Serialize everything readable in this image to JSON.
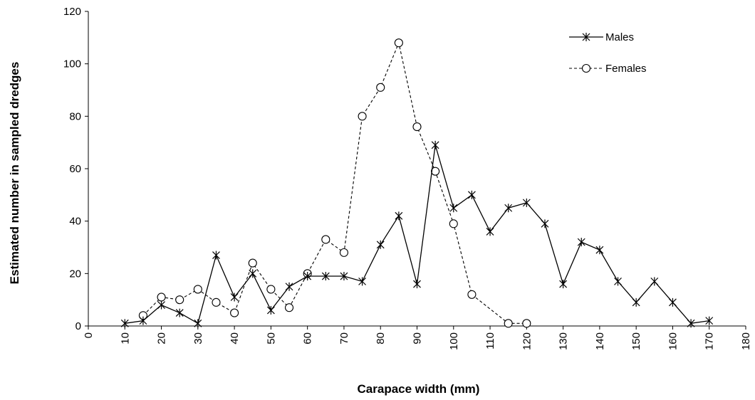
{
  "chart_data": {
    "type": "line",
    "title": "",
    "xlabel": "Carapace width (mm)",
    "ylabel": "Estimated number in sampled dredges",
    "xlim": [
      0,
      180
    ],
    "ylim": [
      0,
      120
    ],
    "x_ticks": [
      "0",
      "10",
      "20",
      "30",
      "40",
      "50",
      "60",
      "70",
      "80",
      "90",
      "100",
      "110",
      "120",
      "130",
      "140",
      "150",
      "160",
      "170",
      "180"
    ],
    "y_ticks": [
      "0",
      "20",
      "40",
      "60",
      "80",
      "100",
      "120"
    ],
    "grid": false,
    "legend_position": "top-right",
    "series": [
      {
        "name": "Males",
        "line_style": "solid",
        "marker": "asterisk",
        "color": "#000000",
        "x": [
          10,
          15,
          20,
          25,
          30,
          35,
          40,
          45,
          50,
          55,
          60,
          65,
          70,
          75,
          80,
          85,
          90,
          95,
          100,
          105,
          110,
          115,
          120,
          125,
          130,
          135,
          140,
          145,
          150,
          155,
          160,
          165,
          170
        ],
        "values": [
          1,
          2,
          8,
          5,
          1,
          27,
          11,
          20,
          6,
          15,
          19,
          19,
          19,
          17,
          31,
          42,
          16,
          69,
          45,
          50,
          36,
          45,
          47,
          39,
          16,
          32,
          29,
          17,
          9,
          17,
          9,
          1,
          2
        ]
      },
      {
        "name": "Females",
        "line_style": "dashed",
        "marker": "circle",
        "color": "#000000",
        "x": [
          15,
          20,
          25,
          30,
          35,
          40,
          45,
          50,
          55,
          60,
          65,
          70,
          75,
          80,
          85,
          90,
          95,
          100,
          105,
          115,
          120
        ],
        "values": [
          4,
          11,
          10,
          14,
          9,
          5,
          24,
          14,
          7,
          20,
          33,
          28,
          80,
          91,
          108,
          76,
          59,
          39,
          12,
          1,
          1
        ]
      }
    ]
  }
}
